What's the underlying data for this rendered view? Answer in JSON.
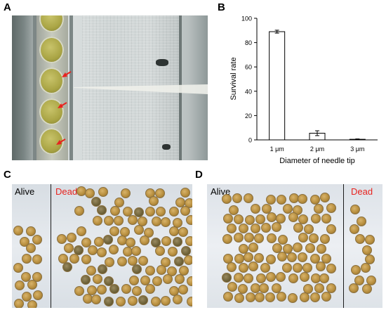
{
  "panel_letters": {
    "a": "A",
    "b": "B",
    "c": "C",
    "d": "D"
  },
  "panel_c": {
    "alive_label": "Alive",
    "dead_label": "Dead"
  },
  "panel_d": {
    "alive_label": "Alive",
    "dead_label": "Dead"
  },
  "colors": {
    "alive": "#000000",
    "dead": "#e8231f",
    "arrow": "#e8231f"
  },
  "chart_data": {
    "type": "bar",
    "categories": [
      "1 μm",
      "2 μm",
      "3 μm"
    ],
    "values": [
      89,
      5.5,
      0.5
    ],
    "errors": [
      1.2,
      2.0,
      0.3
    ],
    "xlabel": "Diameter of needle tip",
    "ylabel": "Survival rate",
    "ylim": [
      0,
      100
    ],
    "yticks": [
      "0",
      "20",
      "40",
      "60",
      "80",
      "100"
    ],
    "grid": false
  }
}
